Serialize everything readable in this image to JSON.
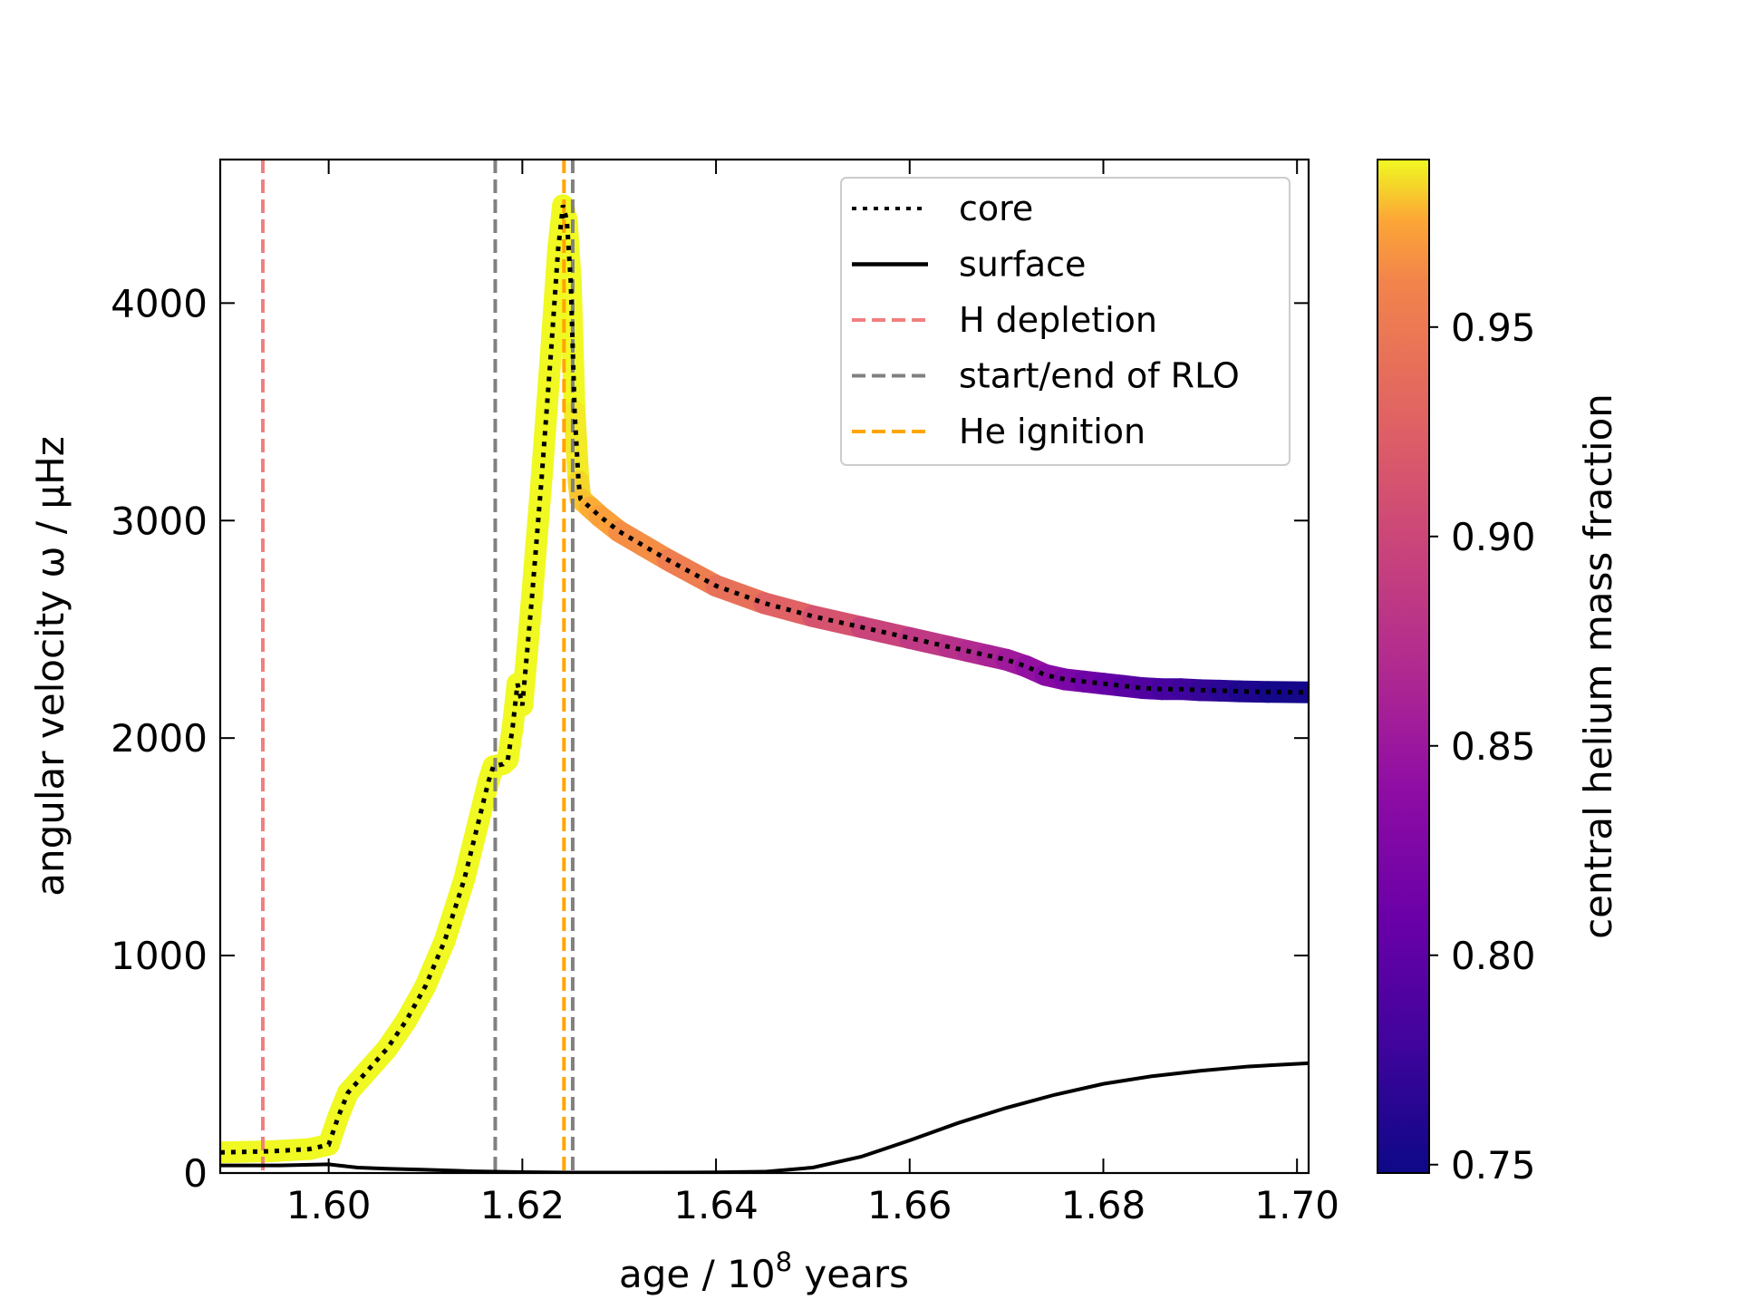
{
  "chart_data": {
    "type": "line",
    "xlabel_prefix": "age / 10",
    "xlabel_exp": "8",
    "xlabel_suffix": " years",
    "ylabel": "angular velocity ω / μHz",
    "xlim": [
      1.5888,
      1.7012
    ],
    "ylim": [
      0,
      4660
    ],
    "xticks": [
      1.6,
      1.62,
      1.64,
      1.66,
      1.68,
      1.7
    ],
    "xtick_labels": [
      "1.60",
      "1.62",
      "1.64",
      "1.66",
      "1.68",
      "1.70"
    ],
    "yticks": [
      0,
      1000,
      2000,
      3000,
      4000
    ],
    "ytick_labels": [
      "0",
      "1000",
      "2000",
      "3000",
      "4000"
    ],
    "colorbar": {
      "label": "central helium mass fraction",
      "range": [
        0.748,
        0.99
      ],
      "ticks": [
        0.75,
        0.8,
        0.85,
        0.9,
        0.95
      ],
      "tick_labels": [
        "0.75",
        "0.80",
        "0.85",
        "0.90",
        "0.95"
      ],
      "colormap": "plasma"
    },
    "series": [
      {
        "name": "core",
        "style": "dotted",
        "color": "#000000",
        "x": [
          1.5888,
          1.594,
          1.598,
          1.6,
          1.601,
          1.602,
          1.604,
          1.606,
          1.608,
          1.61,
          1.612,
          1.614,
          1.6155,
          1.6165,
          1.617,
          1.618,
          1.6185,
          1.619,
          1.6195,
          1.62,
          1.621,
          1.622,
          1.623,
          1.6237,
          1.6242,
          1.6246,
          1.625,
          1.6254,
          1.6258,
          1.626,
          1.627,
          1.628,
          1.63,
          1.635,
          1.64,
          1.645,
          1.65,
          1.655,
          1.66,
          1.664,
          1.666,
          1.668,
          1.67,
          1.672,
          1.674,
          1.676,
          1.678,
          1.68,
          1.682,
          1.684,
          1.686,
          1.688,
          1.69,
          1.692,
          1.694,
          1.697,
          1.7012
        ],
        "y": [
          95,
          100,
          110,
          130,
          260,
          370,
          470,
          570,
          700,
          860,
          1070,
          1350,
          1620,
          1800,
          1870,
          1880,
          1900,
          2050,
          2250,
          2150,
          2650,
          3200,
          3800,
          4250,
          4450,
          4380,
          4100,
          3500,
          3180,
          3100,
          3060,
          3020,
          2950,
          2820,
          2700,
          2620,
          2560,
          2510,
          2460,
          2420,
          2400,
          2380,
          2360,
          2330,
          2290,
          2270,
          2260,
          2250,
          2240,
          2230,
          2225,
          2225,
          2220,
          2218,
          2215,
          2212,
          2210
        ],
        "colors": [
          0.99,
          0.99,
          0.99,
          0.99,
          0.99,
          0.99,
          0.99,
          0.99,
          0.99,
          0.99,
          0.99,
          0.99,
          0.99,
          0.99,
          0.99,
          0.99,
          0.99,
          0.99,
          0.99,
          0.99,
          0.99,
          0.99,
          0.99,
          0.99,
          0.99,
          0.99,
          0.99,
          0.99,
          0.985,
          0.983,
          0.978,
          0.975,
          0.97,
          0.96,
          0.948,
          0.935,
          0.92,
          0.905,
          0.89,
          0.88,
          0.873,
          0.866,
          0.858,
          0.848,
          0.838,
          0.828,
          0.818,
          0.808,
          0.8,
          0.793,
          0.787,
          0.781,
          0.775,
          0.768,
          0.762,
          0.755,
          0.75
        ]
      },
      {
        "name": "surface",
        "style": "solid",
        "color": "#000000",
        "x": [
          1.5888,
          1.595,
          1.6,
          1.601,
          1.603,
          1.606,
          1.61,
          1.615,
          1.62,
          1.625,
          1.63,
          1.64,
          1.645,
          1.65,
          1.655,
          1.66,
          1.665,
          1.67,
          1.675,
          1.68,
          1.685,
          1.69,
          1.695,
          1.7012
        ],
        "y": [
          35,
          35,
          40,
          35,
          25,
          20,
          15,
          8,
          4,
          2,
          2,
          3,
          6,
          25,
          75,
          150,
          230,
          300,
          360,
          410,
          445,
          470,
          490,
          505
        ]
      },
      {
        "name": "H depletion",
        "style": "dashed",
        "color": "#f08080",
        "x_value": 1.5932
      },
      {
        "name": "start/end of RLO",
        "style": "dashed",
        "color": "#808080",
        "x_values": [
          1.6172,
          1.6252
        ]
      },
      {
        "name": "He ignition",
        "style": "dashed",
        "color": "#ffa500",
        "x_value": 1.6243
      }
    ],
    "legend": {
      "position": "top-right",
      "entries": [
        "core",
        "surface",
        "H depletion",
        "start/end of RLO",
        "He ignition"
      ]
    }
  }
}
